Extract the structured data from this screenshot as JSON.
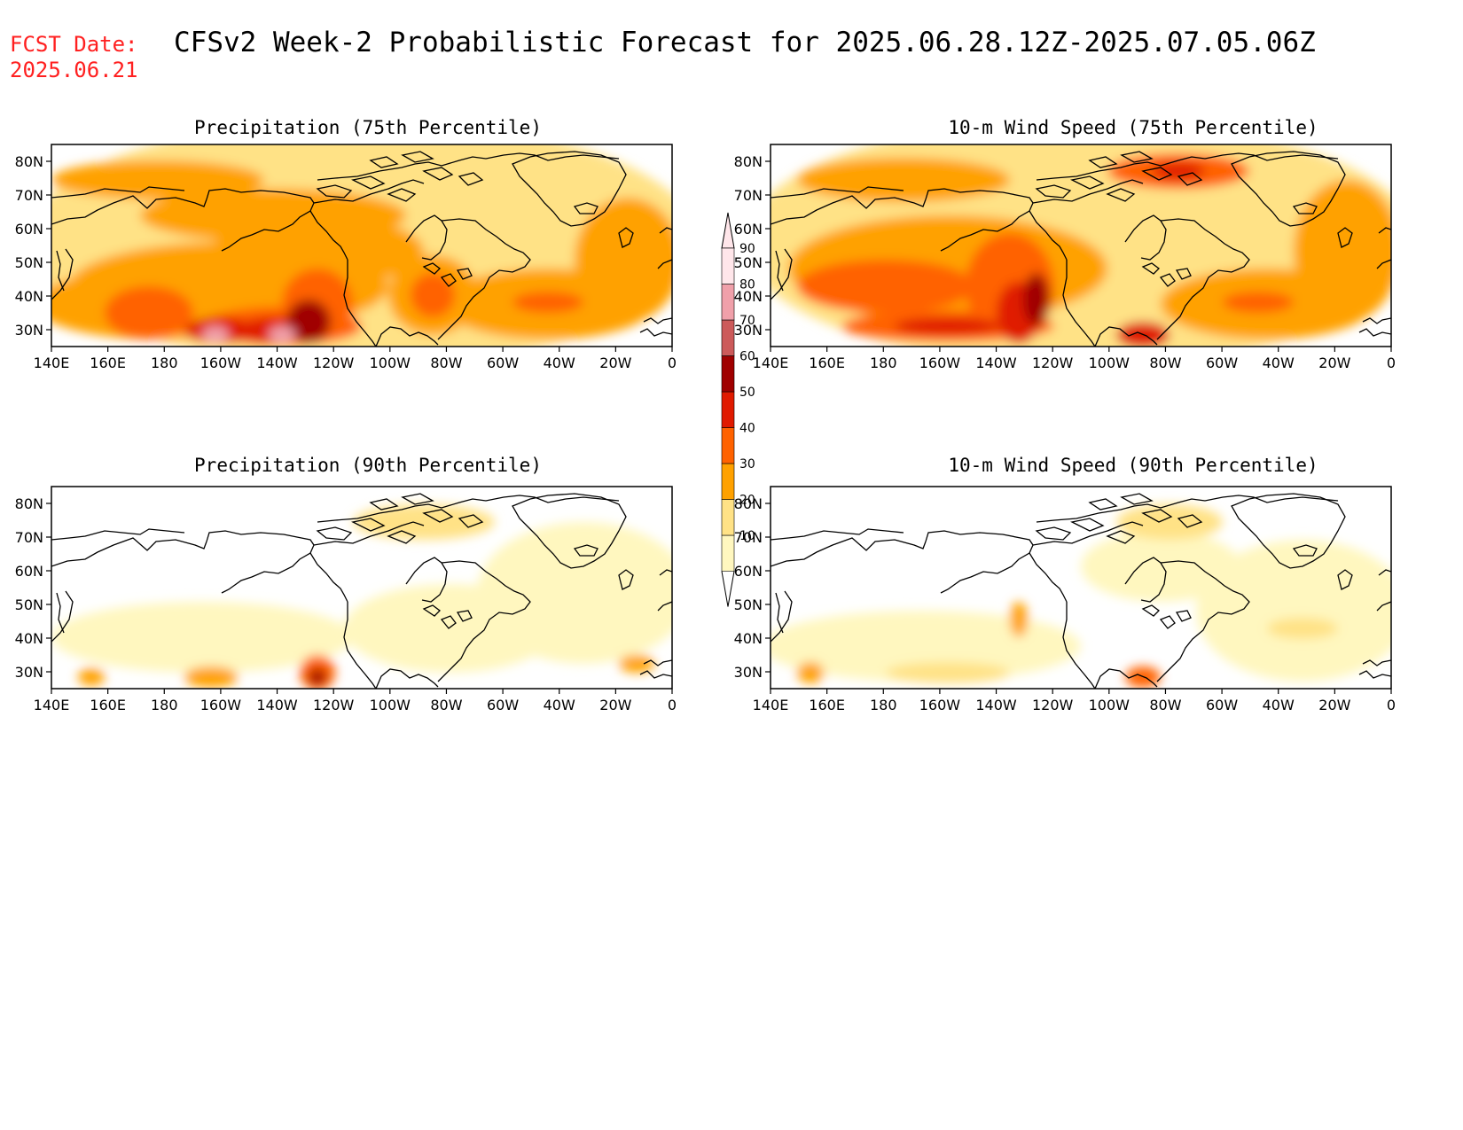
{
  "header": {
    "fcst_label": "FCST Date:",
    "fcst_date": "2025.06.21",
    "title": "CFSv2 Week-2 Probabilistic Forecast for 2025.06.28.12Z-2025.07.05.06Z"
  },
  "axes": {
    "lon_labels": [
      "140E",
      "160E",
      "180",
      "160W",
      "140W",
      "120W",
      "100W",
      "80W",
      "60W",
      "40W",
      "20W",
      "0"
    ],
    "lat_labels": [
      "30N",
      "40N",
      "50N",
      "60N",
      "70N",
      "80N"
    ]
  },
  "colorbar": {
    "levels": [
      "10",
      "20",
      "30",
      "40",
      "50",
      "60",
      "70",
      "80",
      "90"
    ],
    "colors": [
      "#fff7bf",
      "#ffe286",
      "#ffa100",
      "#ff6200",
      "#e01a00",
      "#a00000",
      "#cc5a5a",
      "#f0a0aa",
      "#ffe6ea"
    ]
  },
  "panels": [
    {
      "id": "precip75",
      "title": "Precipitation (75th Percentile)"
    },
    {
      "id": "wind75",
      "title": "10-m Wind Speed (75th Percentile)"
    },
    {
      "id": "precip90",
      "title": "Precipitation (90th Percentile)"
    },
    {
      "id": "wind90",
      "title": "10-m Wind Speed (90th Percentile)"
    }
  ]
}
